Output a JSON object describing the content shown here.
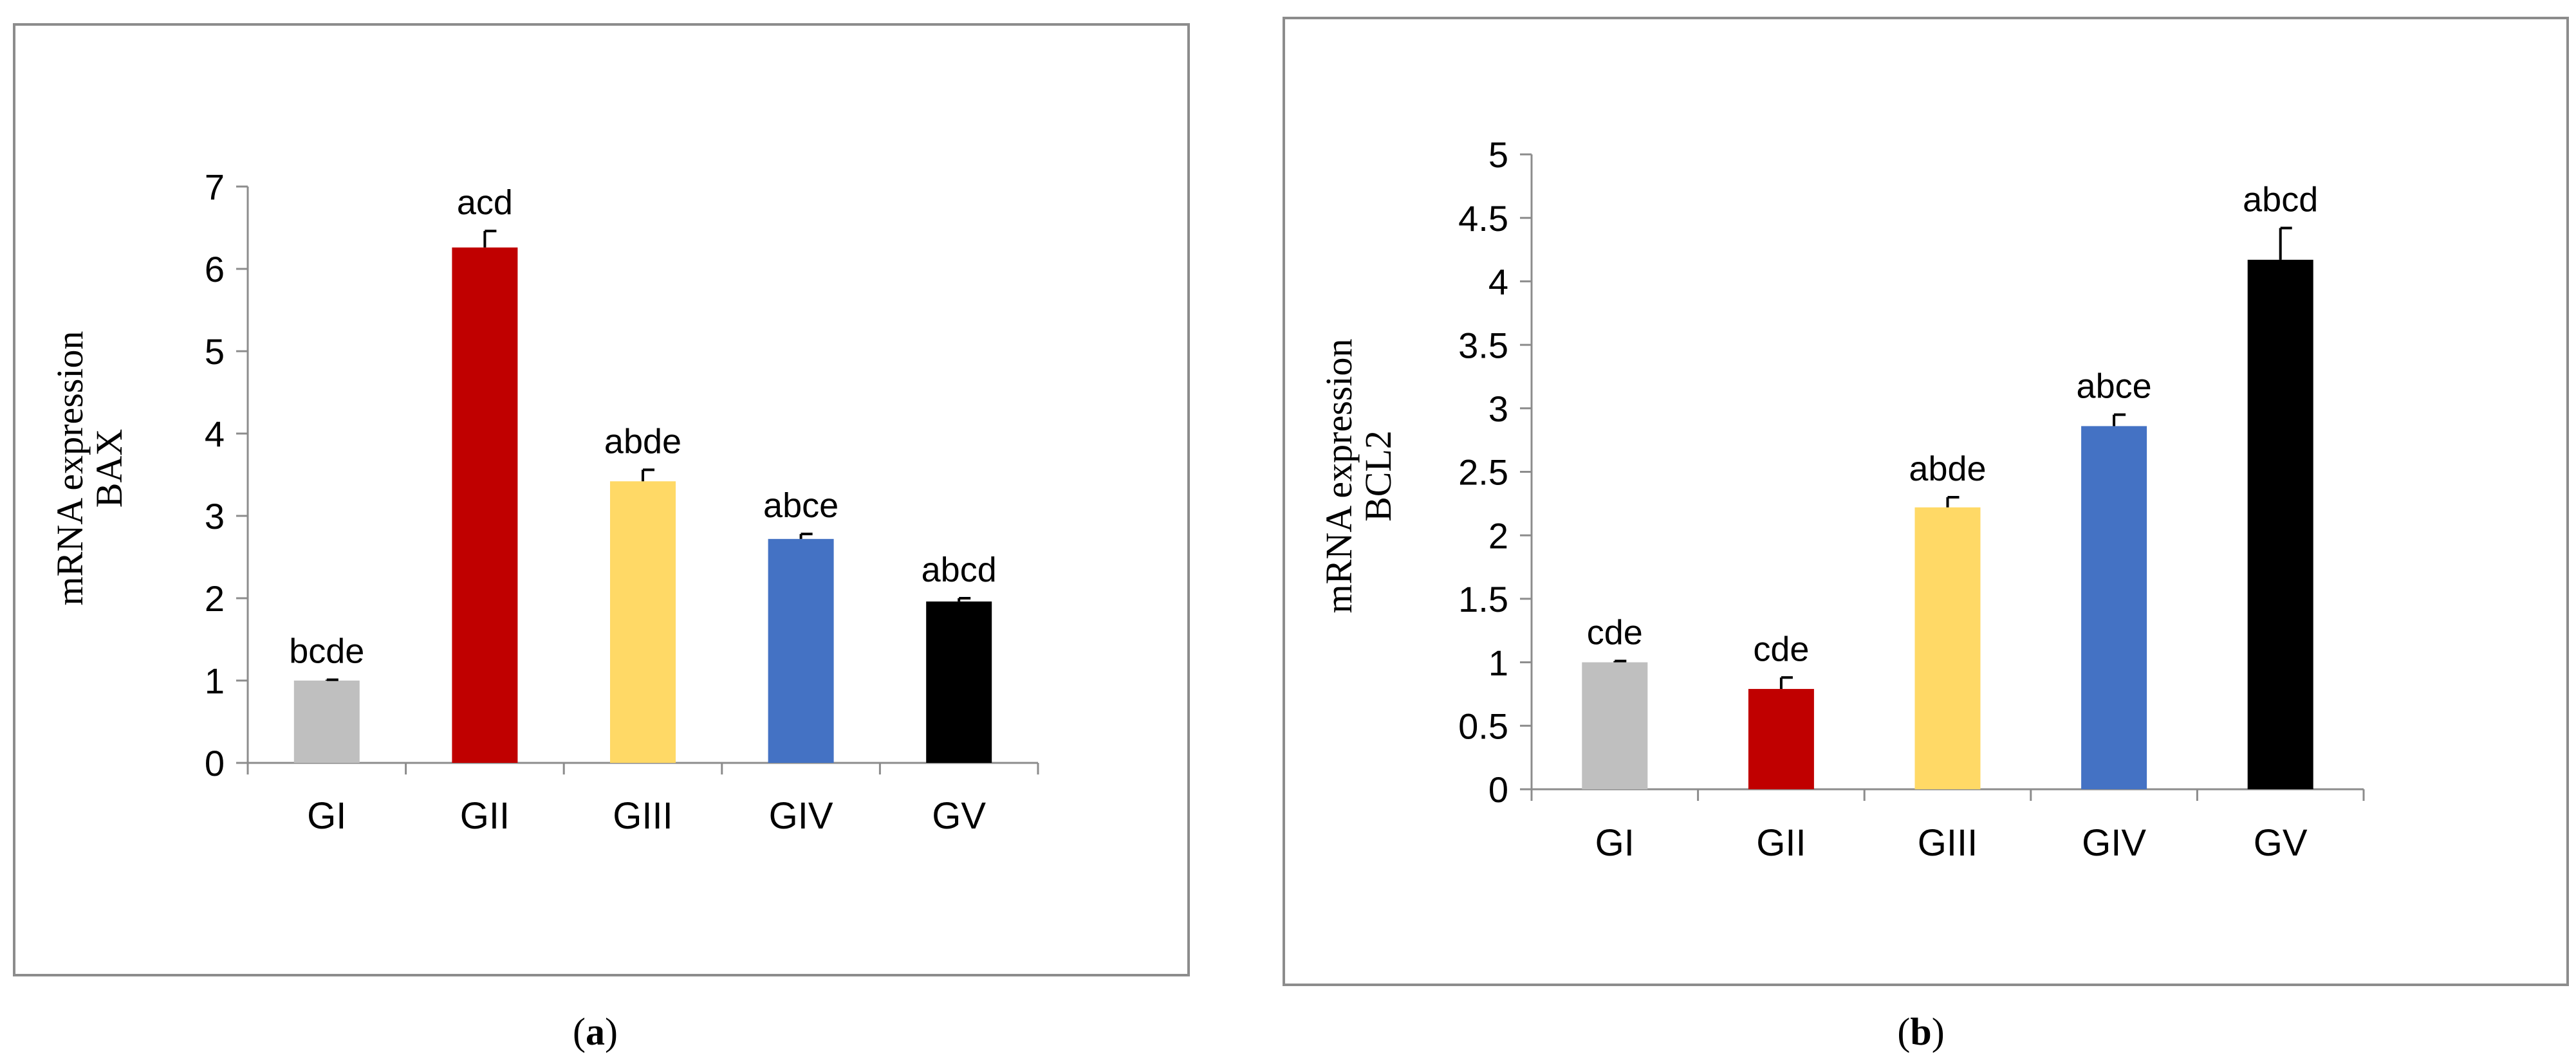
{
  "chart_data": [
    {
      "type": "bar",
      "panel_label": "a",
      "ylabel": [
        "mRNA expression",
        "BAX"
      ],
      "ylim": [
        0,
        7
      ],
      "yticks": [
        "0",
        "1",
        "2",
        "3",
        "4",
        "5",
        "6",
        "7"
      ],
      "categories": [
        "GI",
        "GII",
        "GIII",
        "GIV",
        "GV"
      ],
      "values": [
        1.0,
        6.26,
        3.42,
        2.72,
        1.96
      ],
      "errors": [
        0.01,
        0.2,
        0.14,
        0.06,
        0.04
      ],
      "annotations": [
        "bcde",
        "acd",
        "abde",
        "abce",
        "abcd"
      ],
      "colors": [
        "#bfbfbf",
        "#c00000",
        "#ffd966",
        "#4472c4",
        "#000000"
      ],
      "grid": false
    },
    {
      "type": "bar",
      "panel_label": "b",
      "ylabel": [
        "mRNA expression",
        "BCL2"
      ],
      "ylim": [
        0,
        5
      ],
      "yticks": [
        "0",
        "0.5",
        "1",
        "1.5",
        "2",
        "2.5",
        "3",
        "3.5",
        "4",
        "4.5",
        "5"
      ],
      "categories": [
        "GI",
        "GII",
        "GIII",
        "GIV",
        "GV"
      ],
      "values": [
        1.0,
        0.79,
        2.22,
        2.86,
        4.17
      ],
      "errors": [
        0.01,
        0.09,
        0.08,
        0.09,
        0.25
      ],
      "annotations": [
        "cde",
        "cde",
        "abde",
        "abce",
        "abcd"
      ],
      "colors": [
        "#bfbfbf",
        "#c00000",
        "#ffd966",
        "#4472c4",
        "#000000"
      ],
      "grid": false
    }
  ]
}
